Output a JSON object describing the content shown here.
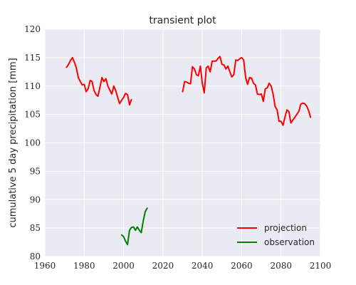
{
  "chart_data": {
    "type": "line",
    "title": "transient plot",
    "xlabel": "",
    "ylabel": "cumulative 5 day precipitation [mm]",
    "xlim": [
      1960,
      2100
    ],
    "ylim": [
      80,
      120
    ],
    "xticks": [
      1960,
      1980,
      2000,
      2020,
      2040,
      2060,
      2080,
      2100
    ],
    "yticks": [
      80,
      85,
      90,
      95,
      100,
      105,
      110,
      115,
      120
    ],
    "grid": true,
    "legend_position": "lower-right",
    "background_color": "#eaeaf2",
    "grid_color": "#ffffff",
    "series": [
      {
        "name": "projection",
        "color": "#ff0000",
        "segments": [
          {
            "x": [
              1971,
              1972,
              1973,
              1974,
              1975,
              1976,
              1977,
              1978,
              1979,
              1980,
              1981,
              1982,
              1983,
              1984,
              1985,
              1986,
              1987,
              1988,
              1989,
              1990,
              1991,
              1992,
              1993,
              1994,
              1995,
              1996,
              1997,
              1998,
              1999,
              2000,
              2001,
              2002,
              2003,
              2004
            ],
            "y": [
              113.3,
              113.8,
              114.5,
              115.0,
              114.2,
              113.2,
              111.5,
              110.8,
              110.2,
              110.3,
              109.0,
              109.5,
              111.0,
              110.8,
              109.2,
              108.5,
              108.2,
              109.8,
              111.5,
              110.8,
              111.3,
              110.0,
              109.3,
              108.6,
              110.0,
              109.2,
              108.0,
              106.9,
              107.5,
              108.0,
              108.7,
              108.5,
              106.7,
              107.6
            ]
          },
          {
            "x": [
              2030,
              2031,
              2032,
              2033,
              2034,
              2035,
              2036,
              2037,
              2038,
              2039,
              2040,
              2041,
              2042,
              2043,
              2044,
              2045,
              2046,
              2047,
              2048,
              2049,
              2050,
              2051,
              2052,
              2053,
              2054,
              2055,
              2056,
              2057,
              2058,
              2059,
              2060,
              2061,
              2062,
              2063,
              2064,
              2065,
              2066,
              2067,
              2068,
              2069,
              2070,
              2071,
              2072,
              2073,
              2074,
              2075,
              2076,
              2077,
              2078,
              2079,
              2080,
              2081,
              2082,
              2083,
              2084,
              2085,
              2086,
              2087,
              2088,
              2089,
              2090,
              2091,
              2092,
              2093,
              2094,
              2095
            ],
            "y": [
              109.0,
              110.8,
              110.7,
              110.5,
              110.4,
              113.4,
              113.0,
              112.0,
              111.8,
              113.5,
              110.5,
              108.8,
              113.2,
              113.5,
              112.5,
              114.4,
              114.4,
              114.4,
              114.9,
              115.2,
              113.8,
              113.7,
              113.0,
              113.5,
              112.5,
              111.6,
              112.0,
              114.6,
              114.5,
              114.8,
              115.0,
              114.6,
              111.5,
              110.3,
              111.5,
              111.4,
              110.5,
              110.2,
              108.6,
              108.5,
              108.6,
              107.3,
              109.5,
              109.7,
              110.5,
              110.0,
              108.5,
              106.4,
              105.8,
              103.8,
              103.8,
              103.1,
              104.5,
              105.8,
              105.5,
              103.5,
              104.0,
              104.5,
              105.0,
              105.5,
              106.8,
              107.0,
              106.9,
              106.5,
              105.7,
              104.5
            ]
          }
        ]
      },
      {
        "name": "observation",
        "color": "#008000",
        "segments": [
          {
            "x": [
              1999,
              2000,
              2001,
              2002,
              2003,
              2004,
              2005,
              2006,
              2007,
              2008,
              2009,
              2010,
              2011,
              2012
            ],
            "y": [
              83.8,
              83.5,
              82.7,
              82.1,
              84.6,
              85.1,
              85.2,
              84.6,
              85.2,
              84.6,
              84.2,
              86.3,
              87.9,
              88.5
            ]
          }
        ]
      }
    ]
  }
}
